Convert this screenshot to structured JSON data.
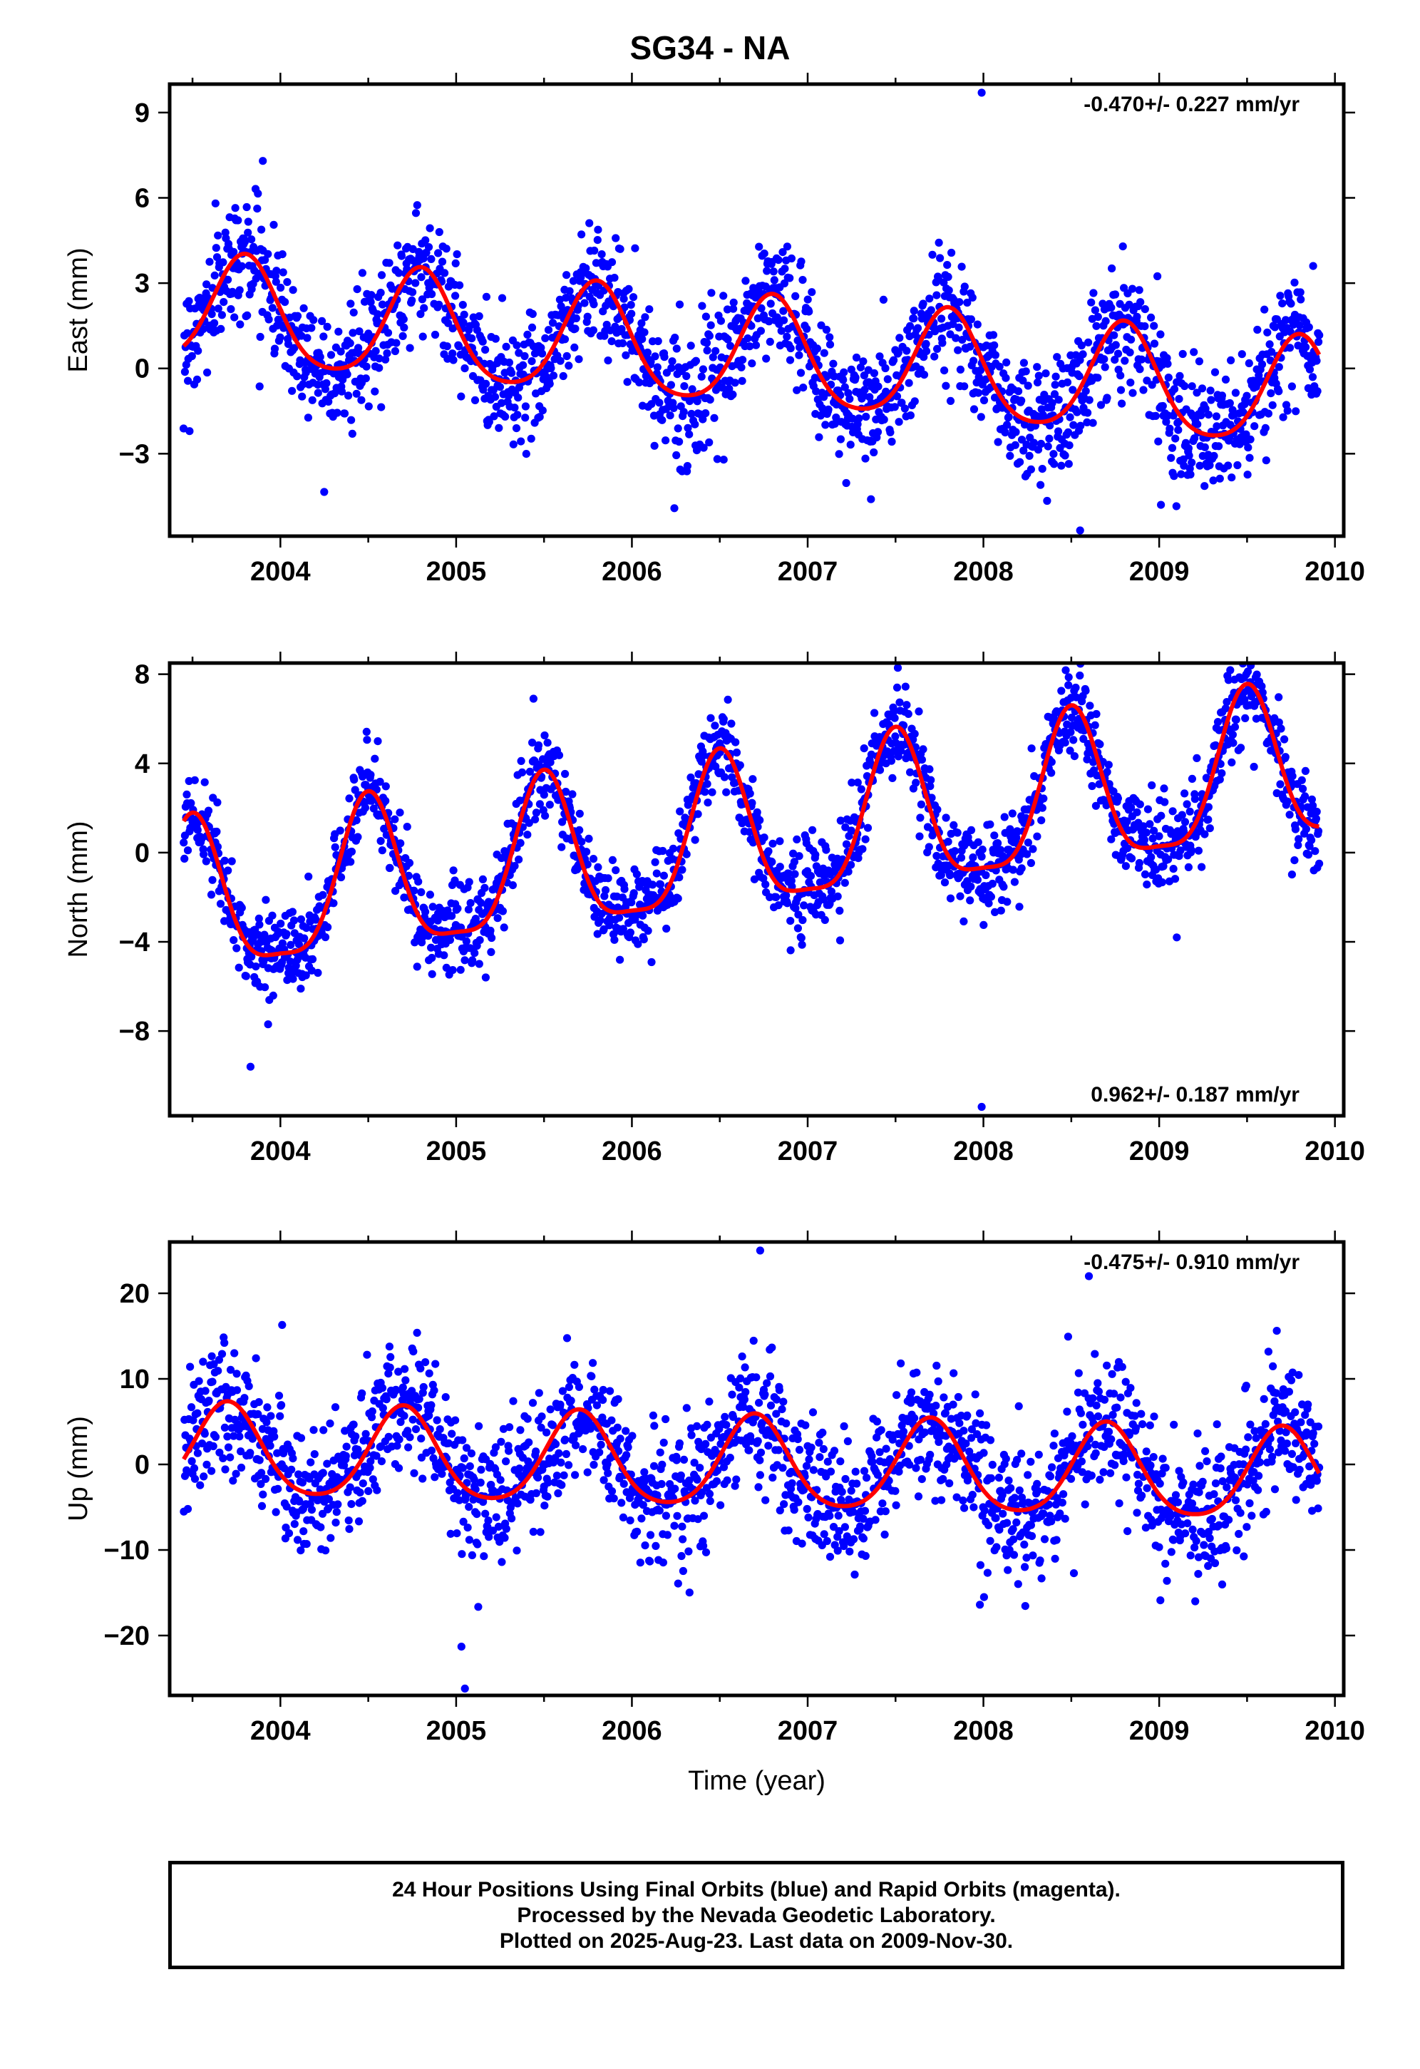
{
  "title": "SG34 - NA",
  "colors": {
    "points": "#0000ff",
    "fit": "#ff0000",
    "frame": "#000000"
  },
  "footer": {
    "line1": "24 Hour Positions Using Final Orbits (blue) and Rapid Orbits (magenta).",
    "line2": "Processed by the Nevada Geodetic Laboratory.",
    "line3": "Plotted on 2025-Aug-23. Last data on 2009-Nov-30."
  },
  "chart_data": [
    {
      "type": "scatter",
      "id": "east",
      "ylabel": "East (mm)",
      "xlabel": "",
      "xlim": [
        2003.37,
        2010.05
      ],
      "ylim": [
        -5.9,
        10.0
      ],
      "xticks": [
        2004,
        2005,
        2006,
        2007,
        2008,
        2009,
        2010
      ],
      "yticks": [
        -3,
        0,
        3,
        6,
        9
      ],
      "yticklabels": [
        "−3",
        "0",
        "3",
        "6",
        "9"
      ],
      "rate_label": "-0.470+/- 0.227 mm/yr",
      "rate_position": "top-right",
      "data_span": [
        2003.45,
        2009.91
      ],
      "trend": {
        "a0": 0.8,
        "rate": -0.47,
        "t0": 2006.0
      },
      "seasonal": {
        "amp": 1.9,
        "peak": 0.8,
        "semi_amp": 0.3
      },
      "noise_sd": 1.05,
      "outliers": [
        [
          2007.99,
          9.7
        ],
        [
          2008.55,
          -5.7
        ],
        [
          2003.9,
          7.3
        ],
        [
          2009.01,
          -4.8
        ],
        [
          2007.36,
          -4.6
        ]
      ]
    },
    {
      "type": "scatter",
      "id": "north",
      "ylabel": "North (mm)",
      "xlabel": "",
      "xlim": [
        2003.37,
        2010.05
      ],
      "ylim": [
        -11.8,
        8.5
      ],
      "xticks": [
        2004,
        2005,
        2006,
        2007,
        2008,
        2009,
        2010
      ],
      "yticks": [
        -8,
        -4,
        0,
        4,
        8
      ],
      "yticklabels": [
        "−8",
        "−4",
        "0",
        "4",
        "8"
      ],
      "rate_label": "0.962+/- 0.187 mm/yr",
      "rate_position": "bottom-right",
      "data_span": [
        2003.45,
        2009.91
      ],
      "trend": {
        "a0": -0.1,
        "rate": 0.962,
        "t0": 2006.0
      },
      "seasonal": {
        "amp": 3.4,
        "peak": 0.5,
        "semi_amp": 0.9
      },
      "noise_sd": 1.0,
      "outliers": [
        [
          2007.99,
          -11.4
        ],
        [
          2003.83,
          -9.6
        ],
        [
          2005.44,
          6.9
        ],
        [
          2009.1,
          -3.8
        ],
        [
          2003.93,
          -7.7
        ]
      ]
    },
    {
      "type": "scatter",
      "id": "up",
      "ylabel": "Up (mm)",
      "xlabel": "Time (year)",
      "xlim": [
        2003.37,
        2010.05
      ],
      "ylim": [
        -27,
        26
      ],
      "xticks": [
        2004,
        2005,
        2006,
        2007,
        2008,
        2009,
        2010
      ],
      "yticks": [
        -20,
        -10,
        0,
        10,
        20
      ],
      "yticklabels": [
        "−20",
        "−10",
        "0",
        "10",
        "20"
      ],
      "rate_label": "-0.475+/- 0.910 mm/yr",
      "rate_position": "top-right",
      "data_span": [
        2003.45,
        2009.91
      ],
      "trend": {
        "a0": 0.2,
        "rate": -0.475,
        "t0": 2006.0
      },
      "seasonal": {
        "amp": 5.3,
        "peak": 0.7,
        "semi_amp": 0.8
      },
      "noise_sd": 3.8,
      "outliers": [
        [
          2006.73,
          25.0
        ],
        [
          2005.05,
          -26.2
        ],
        [
          2008.6,
          22.0
        ],
        [
          2004.01,
          16.3
        ],
        [
          2007.98,
          -16.4
        ],
        [
          2005.03,
          -21.3
        ]
      ]
    }
  ]
}
